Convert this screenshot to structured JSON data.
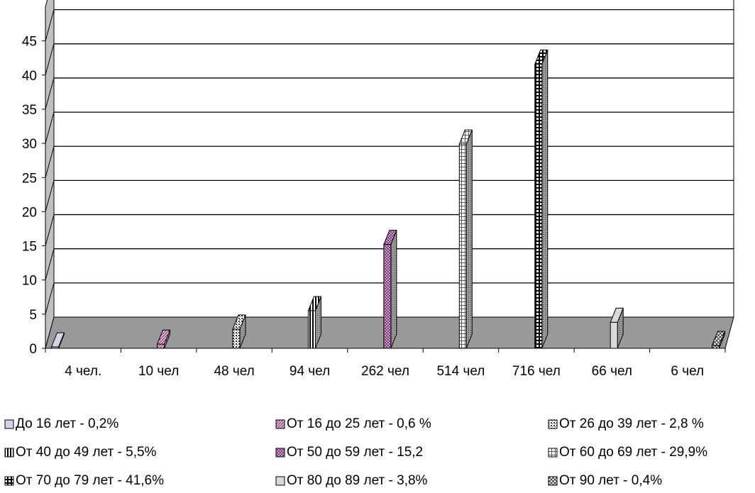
{
  "chart_data": {
    "type": "bar",
    "three_d": true,
    "categories": [
      "4 чел.",
      "10 чел",
      "48 чел",
      "94 чел",
      "262 чел",
      "514 чел",
      "716 чел",
      "66 чел",
      "6 чел"
    ],
    "series": [
      {
        "name": "До 16 лет - 0,2%",
        "values": [
          0.2,
          null,
          null,
          null,
          null,
          null,
          null,
          null,
          null
        ]
      },
      {
        "name": "От 16 до 25 лет - 0,6 %",
        "values": [
          null,
          0.6,
          null,
          null,
          null,
          null,
          null,
          null,
          null
        ]
      },
      {
        "name": "От 26 до 39 лет - 2,8 %",
        "values": [
          null,
          null,
          2.8,
          null,
          null,
          null,
          null,
          null,
          null
        ]
      },
      {
        "name": "От 40 до 49 лет - 5,5%",
        "values": [
          null,
          null,
          null,
          5.5,
          null,
          null,
          null,
          null,
          null
        ]
      },
      {
        "name": "От 50 до 59 лет - 15,2",
        "values": [
          null,
          null,
          null,
          null,
          15.2,
          null,
          null,
          null,
          null
        ]
      },
      {
        "name": "От 60 до 69 лет - 29,9%",
        "values": [
          null,
          null,
          null,
          null,
          null,
          29.9,
          null,
          null,
          null
        ]
      },
      {
        "name": "От 70 до 79 лет - 41,6%",
        "values": [
          null,
          null,
          null,
          null,
          null,
          null,
          41.6,
          null,
          null
        ]
      },
      {
        "name": "От 80 до 89 лет - 3,8%",
        "values": [
          null,
          null,
          null,
          null,
          null,
          null,
          null,
          3.8,
          null
        ]
      },
      {
        "name": "От 90 лет - 0,4%",
        "values": [
          null,
          null,
          null,
          null,
          null,
          null,
          null,
          null,
          0.4
        ]
      }
    ],
    "yticks": [
      "0",
      "5",
      "10",
      "15",
      "20",
      "25",
      "30",
      "35",
      "40",
      "45"
    ],
    "ylim": [
      0,
      50
    ],
    "grid": true,
    "legend_position": "bottom",
    "colors": {
      "floor": "#999999",
      "wall": "#ffffff",
      "side_wall": "#c0c0c0",
      "bars": [
        "#d4d4e8",
        "#e8b3d6",
        "#ffffff",
        "#ffffff",
        "#cc99cc",
        "#ffffff",
        "#ffffff",
        "#d9d9d9",
        "#ffffff"
      ]
    }
  }
}
